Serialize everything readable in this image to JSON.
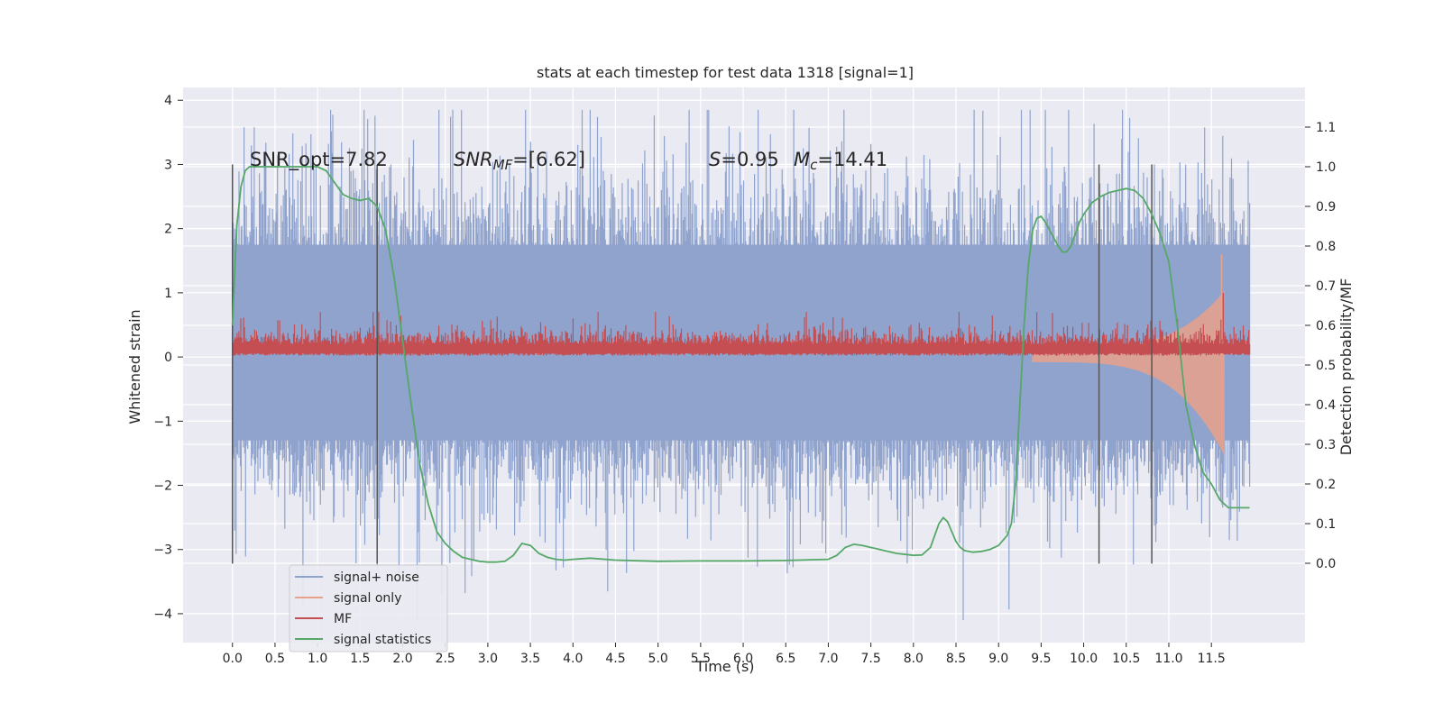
{
  "chart_data": {
    "type": "line",
    "title": "stats at each timestep for test data 1318 [signal=1]",
    "xlabel": "Time (s)",
    "ylabel_left": "Whitened strain",
    "ylabel_right": "Detection probability/MF",
    "xlim": [
      -0.58,
      12.6
    ],
    "ylim_left": [
      -4.45,
      4.2
    ],
    "ylim_right": [
      -0.2,
      1.2
    ],
    "xticks": [
      0.0,
      0.5,
      1.0,
      1.5,
      2.0,
      2.5,
      3.0,
      3.5,
      4.0,
      4.5,
      5.0,
      5.5,
      6.0,
      6.5,
      7.0,
      7.5,
      8.0,
      8.5,
      9.0,
      9.5,
      10.0,
      10.5,
      11.0,
      11.5
    ],
    "xtick_labels": [
      "0.0",
      "0.5",
      "1.0",
      "1.5",
      "2.0",
      "2.5",
      "3.0",
      "3.5",
      "4.0",
      "4.5",
      "5.0",
      "5.5",
      "6.0",
      "6.5",
      "7.0",
      "7.5",
      "8.0",
      "8.5",
      "9.0",
      "9.5",
      "10.0",
      "10.5",
      "11.0",
      "11.5"
    ],
    "yticks_left": [
      4,
      3,
      2,
      1,
      0,
      -1,
      -2,
      -3,
      -4
    ],
    "ytick_labels_left": [
      "4",
      "3",
      "2",
      "1",
      "0",
      "−1",
      "−2",
      "−3",
      "−4"
    ],
    "yticks_right": [
      1.1,
      1.0,
      0.9,
      0.8,
      0.7,
      0.6,
      0.5,
      0.4,
      0.3,
      0.2,
      0.1,
      0.0
    ],
    "ytick_labels_right": [
      "1.1",
      "1.0",
      "0.9",
      "0.8",
      "0.7",
      "0.6",
      "0.5",
      "0.4",
      "0.3",
      "0.2",
      "0.1",
      "0.0"
    ],
    "grid": true,
    "legend_position": "lower-left",
    "annotations": {
      "snr_opt": "SNR_opt=7.82",
      "snr_mf_sym": "SNR",
      "snr_mf_sub": "MF",
      "snr_mf_rest": "=[6.62]",
      "s_sym": "S",
      "s_val": "=0.95",
      "mc_sym": "M",
      "mc_sub": "c",
      "mc_val": "=14.41"
    },
    "vertical_markers": [
      0.0,
      1.7,
      10.18,
      10.8
    ],
    "series": [
      {
        "name": "signal+ noise",
        "color": "#8fa3cd",
        "description_range": [
          -4.1,
          3.85
        ],
        "band_1sigma": [
          -1.3,
          1.75
        ]
      },
      {
        "name": "signal only",
        "color": "#e8a18a",
        "chirp_start": 9.4,
        "chirp_end": 11.65
      },
      {
        "name": "MF",
        "color": "#c44e52",
        "base_range": [
          0.05,
          0.45
        ]
      },
      {
        "name": "signal statistics",
        "color": "#55a868",
        "x": [
          0.0,
          0.05,
          0.1,
          0.15,
          0.2,
          0.3,
          0.5,
          0.7,
          0.9,
          1.0,
          1.1,
          1.2,
          1.3,
          1.4,
          1.5,
          1.6,
          1.7,
          1.8,
          1.9,
          2.0,
          2.1,
          2.2,
          2.3,
          2.4,
          2.5,
          2.6,
          2.7,
          2.8,
          2.9,
          3.0,
          3.1,
          3.2,
          3.3,
          3.4,
          3.5,
          3.6,
          3.7,
          3.8,
          3.9,
          4.0,
          4.2,
          4.5,
          5.0,
          5.5,
          6.0,
          6.5,
          7.0,
          7.1,
          7.2,
          7.3,
          7.4,
          7.6,
          7.8,
          8.0,
          8.1,
          8.2,
          8.25,
          8.3,
          8.35,
          8.4,
          8.45,
          8.5,
          8.55,
          8.6,
          8.7,
          8.8,
          8.9,
          9.0,
          9.1,
          9.15,
          9.2,
          9.25,
          9.3,
          9.35,
          9.4,
          9.45,
          9.5,
          9.55,
          9.6,
          9.65,
          9.7,
          9.75,
          9.8,
          9.85,
          9.9,
          9.95,
          10.0,
          10.1,
          10.2,
          10.3,
          10.4,
          10.5,
          10.6,
          10.7,
          10.8,
          10.9,
          11.0,
          11.1,
          11.15,
          11.2,
          11.3,
          11.4,
          11.5,
          11.6,
          11.65,
          11.7,
          11.8,
          11.9,
          11.95
        ],
        "y": [
          0.6,
          0.85,
          0.95,
          0.99,
          1.0,
          1.0,
          1.0,
          1.0,
          1.0,
          1.0,
          0.99,
          0.96,
          0.93,
          0.92,
          0.915,
          0.92,
          0.9,
          0.84,
          0.72,
          0.56,
          0.4,
          0.25,
          0.15,
          0.08,
          0.05,
          0.03,
          0.015,
          0.01,
          0.005,
          0.003,
          0.003,
          0.005,
          0.02,
          0.05,
          0.045,
          0.025,
          0.015,
          0.01,
          0.008,
          0.01,
          0.013,
          0.008,
          0.005,
          0.006,
          0.006,
          0.007,
          0.01,
          0.02,
          0.04,
          0.048,
          0.045,
          0.035,
          0.025,
          0.02,
          0.021,
          0.04,
          0.07,
          0.1,
          0.115,
          0.105,
          0.08,
          0.055,
          0.04,
          0.032,
          0.028,
          0.03,
          0.035,
          0.045,
          0.07,
          0.1,
          0.2,
          0.4,
          0.6,
          0.75,
          0.84,
          0.87,
          0.875,
          0.86,
          0.84,
          0.82,
          0.8,
          0.785,
          0.785,
          0.8,
          0.83,
          0.86,
          0.88,
          0.91,
          0.925,
          0.935,
          0.94,
          0.945,
          0.94,
          0.92,
          0.88,
          0.83,
          0.76,
          0.6,
          0.5,
          0.4,
          0.3,
          0.23,
          0.2,
          0.16,
          0.15,
          0.14,
          0.14,
          0.14,
          0.14
        ]
      }
    ]
  }
}
